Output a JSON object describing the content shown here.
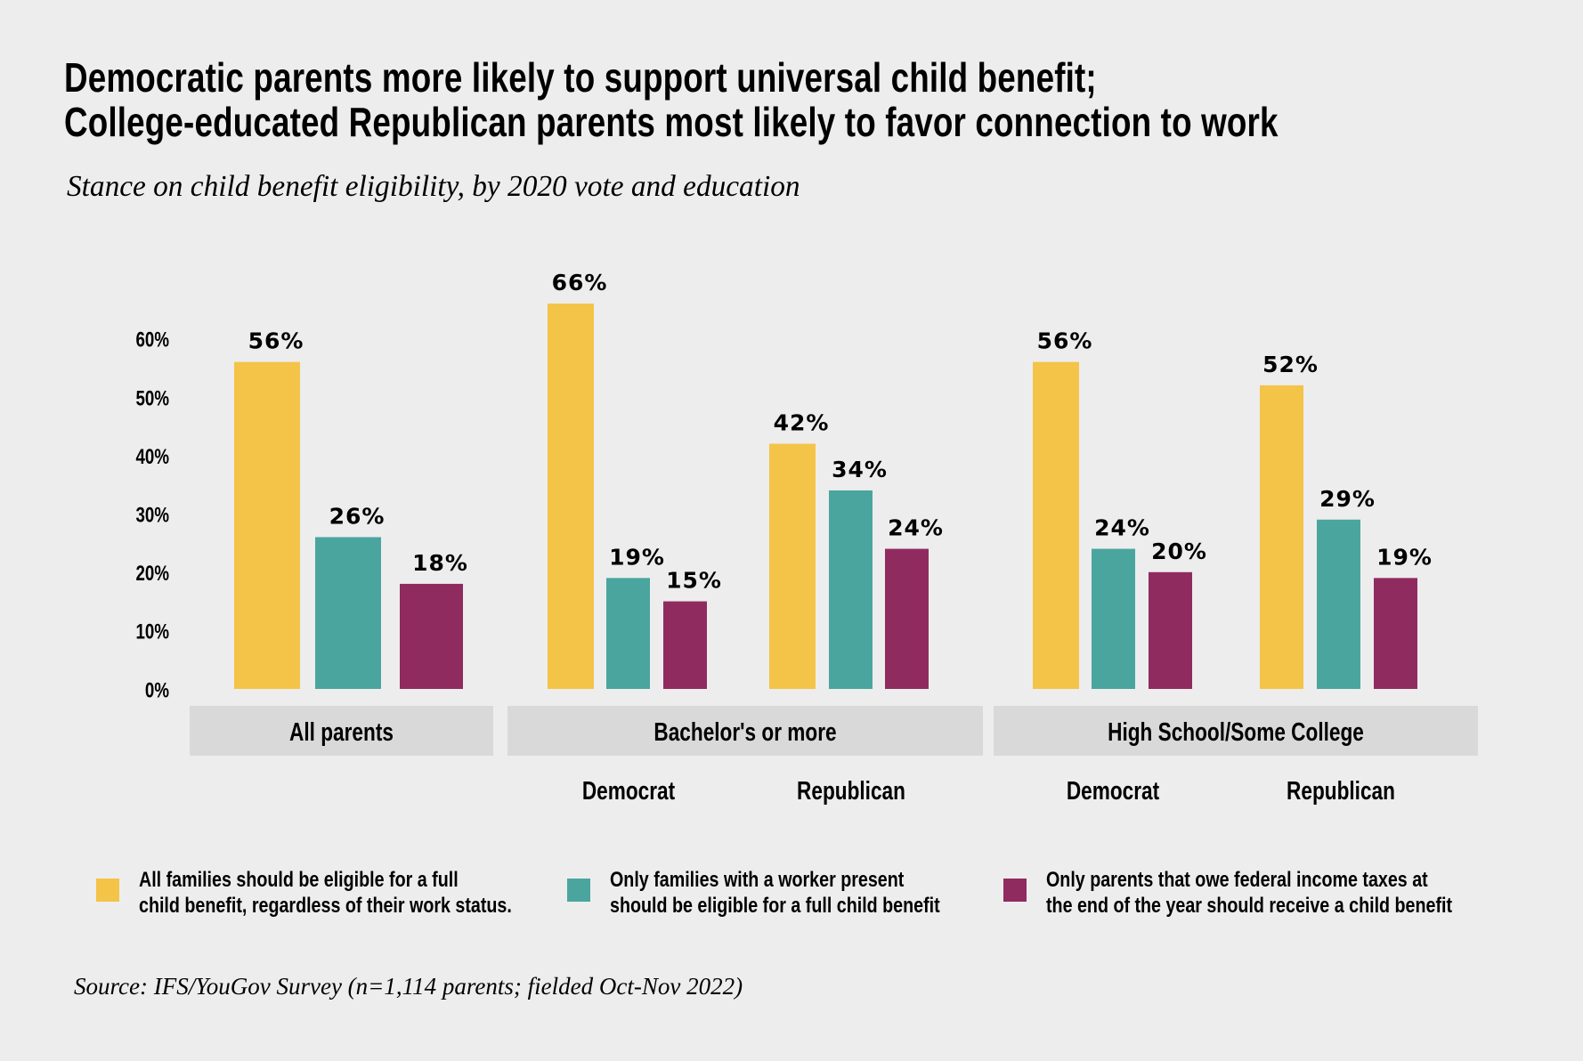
{
  "title": {
    "line1": "Democratic parents more likely to support universal child benefit;",
    "line2": "College-educated Republican parents most likely to favor connection to work"
  },
  "subtitle": "Stance on child benefit eligibility, by 2020 vote and education",
  "source": "Source: IFS/YouGov Survey (n=1,114 parents; fielded Oct-Nov 2022)",
  "colors": {
    "background": "#ededed",
    "band": "#d9d9d9",
    "universal": "#f4c449",
    "worker": "#4ba59f",
    "taxes": "#902b60"
  },
  "chart_data": {
    "type": "bar",
    "title": "Democratic parents more likely to support universal child benefit; College-educated Republican parents most likely to favor connection to work",
    "subtitle": "Stance on child benefit eligibility, by 2020 vote and education",
    "xlabel": "",
    "ylabel": "",
    "ylim": [
      0,
      60
    ],
    "yticks": [
      "0%",
      "10%",
      "20%",
      "30%",
      "40%",
      "50%",
      "60%"
    ],
    "ytick_values": [
      0,
      10,
      20,
      30,
      40,
      50,
      60
    ],
    "grid": false,
    "legend_position": "bottom",
    "groups": [
      {
        "label": "All parents",
        "categories": [
          ""
        ]
      },
      {
        "label": "Bachelor's or more",
        "categories": [
          "Democrat",
          "Republican"
        ]
      },
      {
        "label": "High School/Some College",
        "categories": [
          "Democrat",
          "Republican"
        ]
      }
    ],
    "categories": [
      "All parents",
      "Bachelor's or more - Democrat",
      "Bachelor's or more - Republican",
      "High School/Some College - Democrat",
      "High School/Some College - Republican"
    ],
    "series": [
      {
        "name": "All families should be eligible for a full child benefit, regardless of their work status.",
        "legend_lines": [
          "All families should be eligible for a full",
          "child benefit, regardless of their work status."
        ],
        "color": "#f4c449",
        "values": [
          56,
          66,
          42,
          56,
          52
        ],
        "labels": [
          "56%",
          "66%",
          "42%",
          "56%",
          "52%"
        ]
      },
      {
        "name": "Only families with a worker present should be eligible for a full child benefit",
        "legend_lines": [
          "Only families with a worker present",
          "should be eligible for a full child benefit"
        ],
        "color": "#4ba59f",
        "values": [
          26,
          19,
          34,
          24,
          29
        ],
        "labels": [
          "26%",
          "19%",
          "34%",
          "24%",
          "29%"
        ]
      },
      {
        "name": "Only parents that owe federal income taxes at the end of the year should receive a child benefit",
        "legend_lines": [
          "Only parents that owe federal income taxes at",
          "the end of the year should receive a child benefit"
        ],
        "color": "#902b60",
        "values": [
          18,
          15,
          24,
          20,
          19
        ],
        "labels": [
          "18%",
          "15%",
          "24%",
          "20%",
          "19%"
        ]
      }
    ]
  }
}
